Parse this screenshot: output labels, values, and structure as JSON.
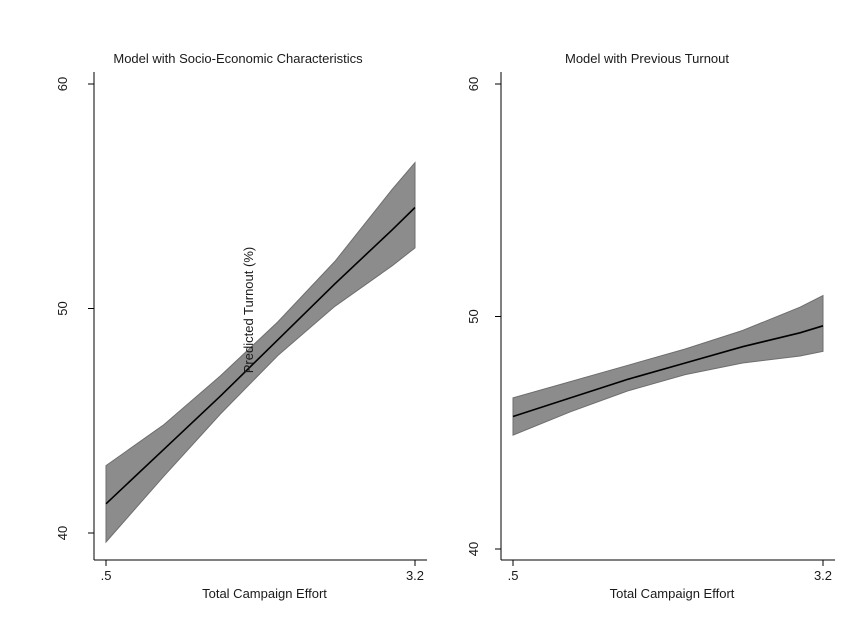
{
  "chart_data": [
    {
      "type": "line",
      "title": "Model with Socio-Economic Characteristics",
      "xlabel": "Total Campaign Effort",
      "ylabel": "Predicted Turnout (%)",
      "xlim": [
        0.5,
        3.2
      ],
      "ylim": [
        40,
        60
      ],
      "xticks": [
        {
          "value": 0.5,
          "label": ".5"
        },
        {
          "value": 3.2,
          "label": "3.2"
        }
      ],
      "yticks": [
        {
          "value": 40,
          "label": "40"
        },
        {
          "value": 50,
          "label": "50"
        },
        {
          "value": 60,
          "label": "60"
        }
      ],
      "grid": false,
      "series": [
        {
          "x": [
            0.5,
            1.0,
            1.5,
            2.0,
            2.5,
            3.0,
            3.2
          ],
          "y": [
            41.3,
            43.7,
            46.1,
            48.6,
            51.1,
            53.5,
            54.5
          ],
          "lower": [
            39.6,
            42.5,
            45.3,
            47.9,
            50.1,
            51.9,
            52.7
          ],
          "upper": [
            43.0,
            44.8,
            47.0,
            49.4,
            52.1,
            55.3,
            56.5
          ],
          "color": "#000000",
          "band_color": "#8c8c8c"
        }
      ]
    },
    {
      "type": "line",
      "title": "Model with Previous Turnout",
      "xlabel": "Total Campaign Effort",
      "ylabel": "",
      "xlim": [
        0.5,
        3.2
      ],
      "ylim": [
        40,
        60
      ],
      "xticks": [
        {
          "value": 0.5,
          "label": ".5"
        },
        {
          "value": 3.2,
          "label": "3.2"
        }
      ],
      "yticks": [
        {
          "value": 40,
          "label": "40"
        },
        {
          "value": 50,
          "label": "50"
        },
        {
          "value": 60,
          "label": "60"
        }
      ],
      "grid": false,
      "series": [
        {
          "x": [
            0.5,
            1.0,
            1.5,
            2.0,
            2.5,
            3.0,
            3.2
          ],
          "y": [
            45.7,
            46.5,
            47.3,
            48.0,
            48.7,
            49.3,
            49.6
          ],
          "lower": [
            44.9,
            45.9,
            46.8,
            47.5,
            48.0,
            48.3,
            48.5
          ],
          "upper": [
            46.5,
            47.2,
            47.9,
            48.6,
            49.4,
            50.4,
            50.9
          ],
          "color": "#000000",
          "band_color": "#8c8c8c"
        }
      ]
    }
  ]
}
